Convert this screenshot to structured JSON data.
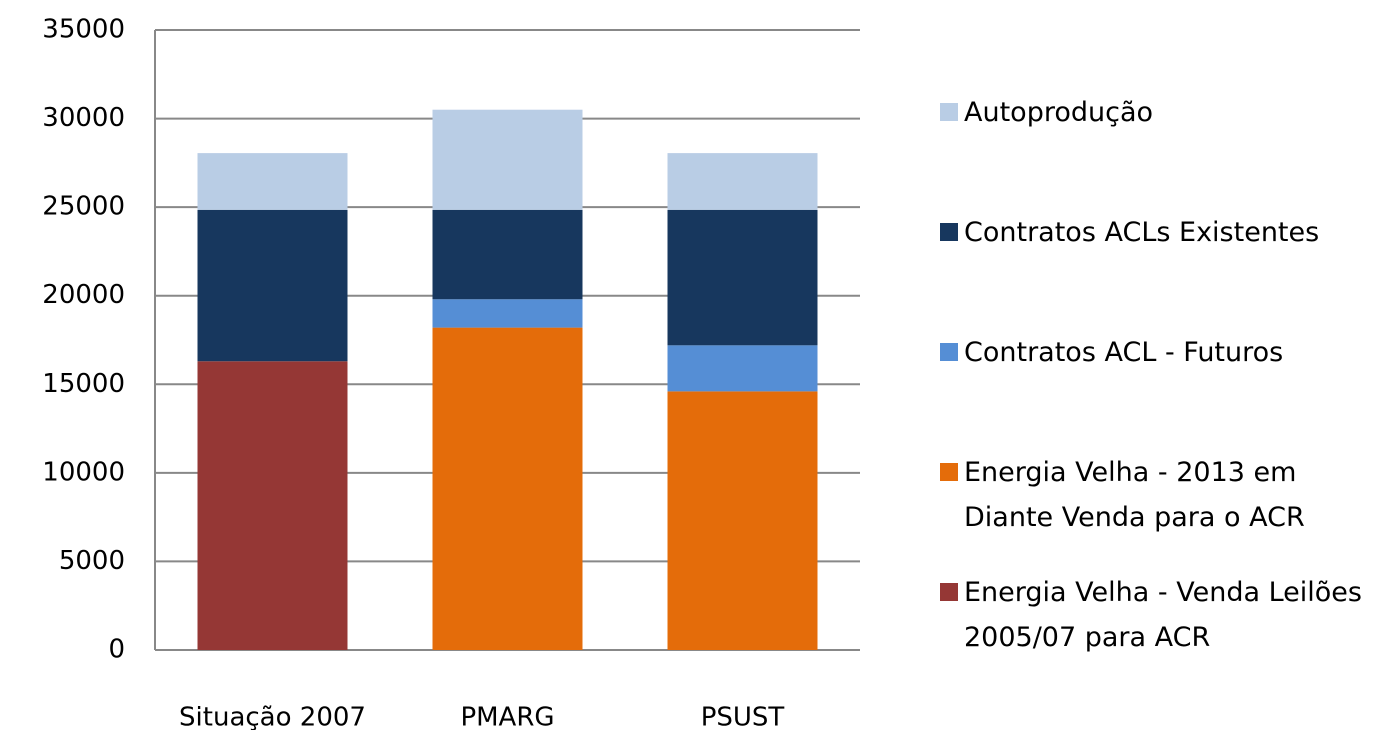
{
  "chart_data": {
    "type": "stacked-bar",
    "categories": [
      "Situação 2007",
      "PMARG",
      "PSUST"
    ],
    "series": [
      {
        "name": "Energia Velha - Venda Leilões 2005/07 para ACR",
        "color": "#953735",
        "values": [
          16300,
          0,
          0
        ]
      },
      {
        "name": "Energia Velha - 2013 em Diante Venda para o ACR",
        "color": "#e46c0a",
        "values": [
          0,
          18200,
          14600
        ]
      },
      {
        "name": "Contratos ACL - Futuros",
        "color": "#558ed5",
        "values": [
          0,
          1600,
          2600
        ]
      },
      {
        "name": "Contratos ACLs Existentes",
        "color": "#17375e",
        "values": [
          8550,
          5050,
          7650
        ]
      },
      {
        "name": "Autoprodução",
        "color": "#b9cde5",
        "values": [
          3200,
          5650,
          3200
        ]
      }
    ],
    "ylim": [
      0,
      35000
    ],
    "yticks": [
      0,
      5000,
      10000,
      15000,
      20000,
      25000,
      30000,
      35000
    ],
    "grid": true,
    "legend": "right"
  }
}
